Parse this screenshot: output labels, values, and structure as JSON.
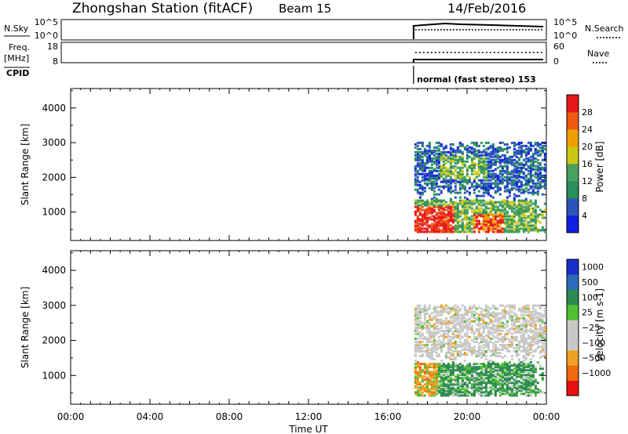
{
  "header": {
    "station": "Zhongshan Station (fitACF)",
    "beam": "Beam 15",
    "date": "14/Feb/2016"
  },
  "status_panels": {
    "nsky": {
      "label": "N.Sky",
      "ticks": [
        "10^5",
        "10^0"
      ]
    },
    "nsearch": {
      "label": "N.Search",
      "ticks": [
        "10^5",
        "10^0"
      ]
    },
    "freq": {
      "label_line1": "Freq.",
      "label_line2": "[MHz]",
      "ticks": [
        "18",
        "8"
      ]
    },
    "nave": {
      "label": "Nave",
      "ticks": [
        "60",
        "0"
      ]
    },
    "cpid": {
      "label": "CPID",
      "mode": "normal (fast stereo) 153"
    }
  },
  "colors": {
    "power_scale": [
      "#1020e0",
      "#2a55b8",
      "#28905a",
      "#4aa060",
      "#c8c814",
      "#f0a000",
      "#f05a10",
      "#e81818"
    ],
    "velocity_scale": [
      "#e81010",
      "#f06a10",
      "#f0a020",
      "#c8c8c8",
      "#c8c8c8",
      "#50c030",
      "#2a8a50",
      "#2e6ab8",
      "#1830c8"
    ]
  },
  "chart_data": [
    {
      "type": "heatmap",
      "name": "power",
      "xlabel": "Time UT",
      "ylabel": "Slant Range [km]",
      "x_ticks": [
        "00:00",
        "04:00",
        "08:00",
        "12:00",
        "16:00",
        "20:00",
        "00:00"
      ],
      "x_range_hours": [
        0,
        24
      ],
      "y_ticks": [
        1000,
        2000,
        3000,
        4000
      ],
      "y_range_km": [
        180,
        4560
      ],
      "data_start_hour": 17.3,
      "colorbar": {
        "label": "Power [dB]",
        "ticks": [
          4,
          8,
          12,
          16,
          20,
          24,
          28
        ],
        "range": [
          0,
          32
        ]
      },
      "echo_regions": [
        {
          "hour_range": [
            17.3,
            24.0
          ],
          "km_range": [
            1500,
            2900
          ],
          "level": "weak"
        },
        {
          "hour_range": [
            17.3,
            23.0
          ],
          "km_range": [
            400,
            1300
          ],
          "level": "strong"
        }
      ]
    },
    {
      "type": "heatmap",
      "name": "velocity",
      "xlabel": "Time UT",
      "ylabel": "Slant Range [km]",
      "x_ticks": [
        "00:00",
        "04:00",
        "08:00",
        "12:00",
        "16:00",
        "20:00",
        "00:00"
      ],
      "x_range_hours": [
        0,
        24
      ],
      "y_ticks": [
        1000,
        2000,
        3000,
        4000
      ],
      "y_range_km": [
        180,
        4560
      ],
      "data_start_hour": 17.3,
      "colorbar": {
        "label": "Velocity [m s-1]",
        "ticks": [
          "1000",
          "500",
          "100",
          "25",
          "−25",
          "−100",
          "−500",
          "−1000"
        ]
      },
      "echo_regions": [
        {
          "hour_range": [
            17.3,
            24.0
          ],
          "km_range": [
            1600,
            2800
          ],
          "level": "near-zero"
        },
        {
          "hour_range": [
            17.3,
            23.5
          ],
          "km_range": [
            400,
            1300
          ],
          "level": "positive"
        }
      ]
    }
  ]
}
